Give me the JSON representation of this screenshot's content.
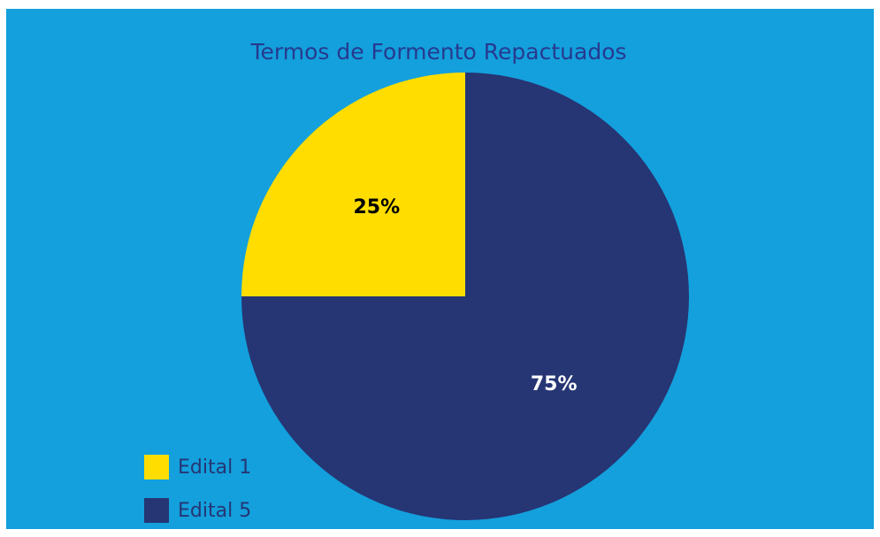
{
  "chart_data": {
    "type": "pie",
    "title": "Termos de Formento Repactuados",
    "categories": [
      "Edital 1",
      "Edital 5"
    ],
    "values": [
      25,
      75
    ],
    "value_labels": [
      "25%",
      "75%"
    ],
    "colors": [
      "#ffdd00",
      "#263574"
    ],
    "label_colors": [
      "#000000",
      "#ffffff"
    ],
    "background": "#13a0dc",
    "legend": "bottom-left"
  }
}
